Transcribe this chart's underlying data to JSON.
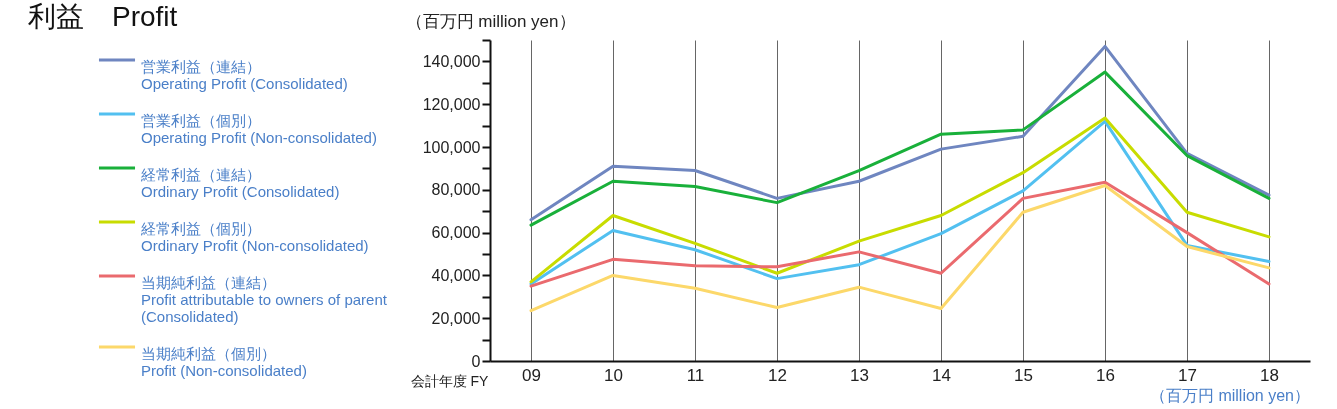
{
  "chart_data": {
    "type": "line",
    "title": "利益　Profit",
    "ylabel": "（百万円 million yen）",
    "xlabel": "会計年度 FY",
    "annotations": [
      "（百万円 million yen）"
    ],
    "categories": [
      "09",
      "10",
      "11",
      "12",
      "13",
      "14",
      "15",
      "16",
      "17",
      "18"
    ],
    "ylim": [
      0,
      150000
    ],
    "yticks": [
      0,
      {
        "value": 10000,
        "label": null
      },
      {
        "value": 20000,
        "label": "20,000"
      },
      {
        "value": 30000,
        "label": null
      },
      {
        "value": 40000,
        "label": "40,000"
      },
      {
        "value": 50000,
        "label": null
      },
      {
        "value": 60000,
        "label": "60,000"
      },
      {
        "value": 70000,
        "label": null
      },
      {
        "value": 80000,
        "label": "80,000"
      },
      {
        "value": 90000,
        "label": null
      },
      {
        "value": 100000,
        "label": "100,000"
      },
      {
        "value": 110000,
        "label": null
      },
      {
        "value": 120000,
        "label": "120,000"
      },
      {
        "value": 130000,
        "label": null
      },
      {
        "value": 140000,
        "label": "140,000"
      },
      {
        "value": 150000,
        "label": null
      }
    ],
    "grid": "x",
    "legend": "left",
    "series": [
      {
        "name": "営業利益（連結）\nOperating Profit (Consolidated)",
        "color": "#6f86c0",
        "values": [
          66000,
          91000,
          89000,
          76000,
          84000,
          99000,
          105000,
          147000,
          97000,
          77500
        ]
      },
      {
        "name": "営業利益（個別）\nOperating Profit (Non-consolidated)",
        "color": "#52c0f0",
        "values": [
          36000,
          61000,
          52000,
          38500,
          45000,
          59500,
          79500,
          112000,
          54000,
          46500
        ]
      },
      {
        "name": "経常利益（連結）\nOrdinary Profit (Consolidated)",
        "color": "#19b03a",
        "values": [
          63500,
          84000,
          81500,
          74000,
          89000,
          106000,
          108000,
          135000,
          96000,
          76000
        ]
      },
      {
        "name": "経常利益（個別）\nOrdinary Profit (Non-consolidated)",
        "color": "#c8dc00",
        "values": [
          37000,
          68000,
          55000,
          41000,
          56000,
          68000,
          88000,
          113500,
          69500,
          58000
        ]
      },
      {
        "name": "当期純利益（連結）\nProfit attributable to owners of parent\n (Consolidated)",
        "color": "#ea6a6e",
        "values": [
          35000,
          47500,
          44500,
          44000,
          51000,
          41000,
          76000,
          83500,
          60000,
          36000
        ]
      },
      {
        "name": "当期純利益（個別）\nProfit (Non-consolidated)",
        "color": "#fcd86a",
        "values": [
          23500,
          40000,
          34000,
          25000,
          34500,
          24500,
          69500,
          82000,
          53500,
          43500
        ]
      }
    ]
  }
}
